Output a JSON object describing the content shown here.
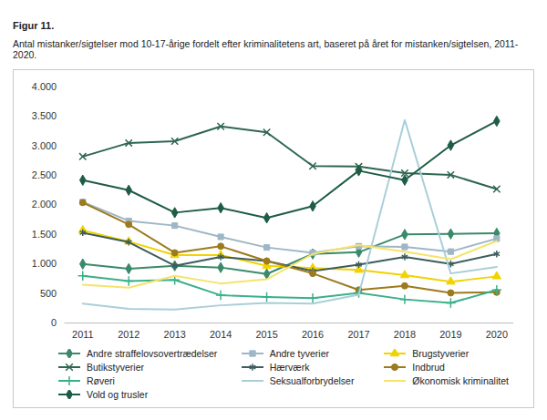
{
  "chart_data": {
    "type": "line",
    "title": "Figur 11.",
    "subtitle": "Antal mistanker/sigtelser mod 10-17-årige fordelt efter kriminalitetens art, baseret på året for mistanken/sigtelsen, 2011-2020.",
    "categories": [
      "2011",
      "2012",
      "2013",
      "2014",
      "2015",
      "2016",
      "2017",
      "2018",
      "2019",
      "2020"
    ],
    "series": [
      {
        "name": "Andre straffelovsovertrædelser",
        "color": "#3a8a6a",
        "marker": "diamond",
        "values": [
          1000,
          920,
          970,
          940,
          830,
          1170,
          1200,
          1500,
          1510,
          1520
        ]
      },
      {
        "name": "Andre tyverier",
        "color": "#9fb6c6",
        "marker": "square",
        "values": [
          2050,
          1730,
          1650,
          1460,
          1280,
          1190,
          1300,
          1290,
          1210,
          1430
        ]
      },
      {
        "name": "Brugstyverier",
        "color": "#f2d200",
        "marker": "triangle",
        "values": [
          1570,
          1380,
          1150,
          1150,
          970,
          930,
          900,
          810,
          700,
          790
        ]
      },
      {
        "name": "Butikstyverier",
        "color": "#2f6650",
        "marker": "times",
        "values": [
          2820,
          3050,
          3080,
          3330,
          3230,
          2660,
          2650,
          2540,
          2510,
          2270
        ]
      },
      {
        "name": "Hærværk",
        "color": "#3d5c5c",
        "marker": "asterisk",
        "values": [
          1530,
          1370,
          970,
          1120,
          1050,
          880,
          990,
          1120,
          1000,
          1170
        ]
      },
      {
        "name": "Indbrud",
        "color": "#9c7a1e",
        "marker": "circle",
        "values": [
          2040,
          1670,
          1190,
          1300,
          1050,
          840,
          560,
          630,
          510,
          520
        ]
      },
      {
        "name": "Røveri",
        "color": "#3ab08a",
        "marker": "plus",
        "values": [
          800,
          710,
          730,
          470,
          440,
          420,
          510,
          400,
          340,
          560
        ]
      },
      {
        "name": "Seksualforbrydelser",
        "color": "#a9cfd9",
        "marker": "none",
        "values": [
          330,
          240,
          230,
          300,
          340,
          330,
          480,
          3440,
          840,
          950
        ]
      },
      {
        "name": "Økonomisk kriminalitet",
        "color": "#f6e36a",
        "marker": "none",
        "values": [
          650,
          600,
          800,
          670,
          740,
          1170,
          1320,
          1210,
          1080,
          1390
        ]
      },
      {
        "name": "Vold og trusler",
        "color": "#1e5c45",
        "marker": "diamond",
        "values": [
          2420,
          2250,
          1870,
          1950,
          1780,
          1980,
          2580,
          2420,
          3010,
          3420
        ]
      }
    ],
    "ylim": [
      0,
      4000
    ],
    "yticks": [
      0,
      500,
      {
        "value": 1000,
        "label": "1.000"
      },
      {
        "value": 1500,
        "label": "1.500"
      },
      {
        "value": 2000,
        "label": "2.000"
      },
      {
        "value": 2500,
        "label": "2.500"
      },
      {
        "value": 3000,
        "label": "3.000"
      },
      {
        "value": 3500,
        "label": "3.500"
      },
      {
        "value": 4000,
        "label": "4.000"
      }
    ],
    "grid": false,
    "legend": "bottom"
  }
}
